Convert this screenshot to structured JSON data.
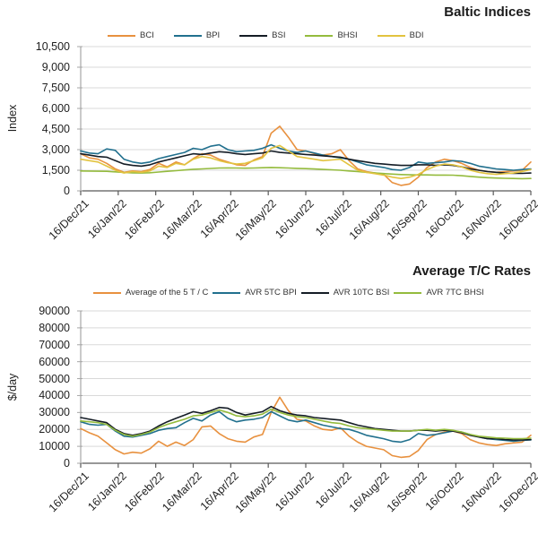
{
  "colors": {
    "grid": "#D9D9D9",
    "axis": "#A6A6A6",
    "x_axis": "#595959",
    "title_text": "#1A1A1A",
    "tick_text": "#1F1F1F",
    "background": "#FFFFFF",
    "orange": "#E8913F",
    "teal": "#21708E",
    "black": "#141C25",
    "green": "#94BB3D",
    "gold": "#E2C33F"
  },
  "chart_data": [
    {
      "type": "line",
      "title": "Baltic Indices",
      "ylabel": "Index",
      "ylim": [
        0,
        10500
      ],
      "ytick_step": 1500,
      "ytick_labels": [
        "0",
        "1,500",
        "3,000",
        "4,500",
        "6,000",
        "7,500",
        "9,000",
        "10,500"
      ],
      "x_tick_labels": [
        "16/Dec/21",
        "16/Jan/22",
        "16/Feb/22",
        "16/Mar/22",
        "16/Apr/22",
        "16/May/22",
        "16/Jun/22",
        "16/Jul/22",
        "16/Aug/22",
        "16/Sep/22",
        "16/Oct/22",
        "16/Nov/22",
        "16/Dec/22"
      ],
      "grid": true,
      "legend_position": "top",
      "x_unit": "weekly",
      "series": [
        {
          "name": "BCI",
          "color": "#E8913F",
          "values": [
            2700,
            2400,
            2300,
            2000,
            1600,
            1350,
            1450,
            1400,
            1550,
            2000,
            1750,
            2100,
            1900,
            2350,
            2700,
            2600,
            2300,
            2100,
            1900,
            1850,
            2250,
            2500,
            4200,
            4700,
            3900,
            3000,
            2900,
            2700,
            2600,
            2700,
            3000,
            2200,
            1600,
            1400,
            1300,
            1200,
            600,
            400,
            500,
            1000,
            1700,
            2100,
            2300,
            2200,
            2000,
            1700,
            1500,
            1400,
            1350,
            1400,
            1450,
            1500,
            2100
          ]
        },
        {
          "name": "BPI",
          "color": "#21708E",
          "values": [
            2900,
            2750,
            2700,
            3050,
            2950,
            2300,
            2100,
            2000,
            2100,
            2350,
            2500,
            2650,
            2800,
            3100,
            3000,
            3250,
            3350,
            3000,
            2850,
            2900,
            2950,
            3100,
            3350,
            3100,
            2900,
            2800,
            2900,
            2750,
            2600,
            2500,
            2400,
            2300,
            2100,
            1900,
            1800,
            1700,
            1550,
            1500,
            1700,
            2100,
            2000,
            2050,
            2100,
            2200,
            2150,
            2000,
            1800,
            1700,
            1600,
            1550,
            1500,
            1550,
            1600
          ]
        },
        {
          "name": "BSI",
          "color": "#141C25",
          "values": [
            2700,
            2600,
            2500,
            2450,
            2200,
            1950,
            1850,
            1800,
            1900,
            2100,
            2250,
            2400,
            2550,
            2700,
            2650,
            2750,
            2850,
            2800,
            2700,
            2650,
            2700,
            2750,
            2900,
            2800,
            2750,
            2700,
            2650,
            2600,
            2550,
            2500,
            2450,
            2300,
            2200,
            2100,
            2000,
            1950,
            1900,
            1850,
            1850,
            1900,
            1900,
            1850,
            1900,
            1850,
            1750,
            1600,
            1500,
            1400,
            1350,
            1300,
            1280,
            1270,
            1300
          ]
        },
        {
          "name": "BHSI",
          "color": "#94BB3D",
          "values": [
            1450,
            1440,
            1430,
            1420,
            1380,
            1340,
            1310,
            1300,
            1320,
            1370,
            1420,
            1470,
            1520,
            1570,
            1600,
            1630,
            1660,
            1670,
            1660,
            1650,
            1660,
            1680,
            1700,
            1680,
            1660,
            1640,
            1620,
            1590,
            1560,
            1530,
            1500,
            1450,
            1400,
            1350,
            1300,
            1260,
            1220,
            1190,
            1170,
            1160,
            1160,
            1150,
            1150,
            1140,
            1100,
            1050,
            1000,
            960,
            930,
            910,
            900,
            890,
            900
          ]
        },
        {
          "name": "BDI",
          "color": "#E2C33F",
          "values": [
            2300,
            2200,
            2100,
            1800,
            1500,
            1300,
            1400,
            1350,
            1450,
            1800,
            1700,
            2000,
            1900,
            2300,
            2500,
            2400,
            2200,
            2050,
            1950,
            2000,
            2200,
            2400,
            3100,
            3300,
            2900,
            2500,
            2400,
            2300,
            2200,
            2250,
            2300,
            1900,
            1500,
            1350,
            1250,
            1150,
            1000,
            900,
            1000,
            1200,
            1550,
            1800,
            1950,
            1900,
            1750,
            1500,
            1350,
            1250,
            1200,
            1250,
            1300,
            1400,
            1550
          ]
        }
      ]
    },
    {
      "type": "line",
      "title": "Average T/C Rates",
      "ylabel": "$/day",
      "ylim": [
        0,
        90000
      ],
      "ytick_step": 10000,
      "ytick_labels": [
        "0",
        "10000",
        "20000",
        "30000",
        "40000",
        "50000",
        "60000",
        "70000",
        "80000",
        "90000"
      ],
      "x_tick_labels": [
        "16/Dec/21",
        "16/Jan/22",
        "16/Feb/22",
        "16/Mar/22",
        "16/Apr/22",
        "16/May/22",
        "16/Jun/22",
        "16/Jul/22",
        "16/Aug/22",
        "16/Sep/22",
        "16/Oct/22",
        "16/Nov/22",
        "16/Dec/22"
      ],
      "grid": true,
      "legend_position": "top",
      "x_unit": "weekly",
      "series": [
        {
          "name": "Average of the 5 T / C",
          "color": "#E8913F",
          "values": [
            20500,
            18000,
            16000,
            12000,
            8000,
            5500,
            6500,
            6000,
            8500,
            13000,
            10000,
            12500,
            10500,
            14000,
            21500,
            22000,
            17500,
            14500,
            13000,
            12500,
            15500,
            17000,
            30000,
            39000,
            31000,
            26000,
            25000,
            22000,
            20000,
            19500,
            21000,
            16000,
            12500,
            10000,
            9000,
            8000,
            4500,
            3500,
            4000,
            7500,
            14000,
            17000,
            18500,
            19000,
            17500,
            14000,
            12000,
            11000,
            10500,
            11500,
            12000,
            12500,
            16500
          ]
        },
        {
          "name": "AVR 5TC BPI",
          "color": "#21708E",
          "values": [
            24500,
            23000,
            22500,
            23000,
            19000,
            16000,
            15500,
            16500,
            17500,
            19500,
            20500,
            21000,
            24000,
            26500,
            25000,
            28500,
            30500,
            26500,
            24500,
            25500,
            26000,
            27000,
            30500,
            28000,
            25500,
            24500,
            25500,
            24000,
            22500,
            21500,
            20500,
            20000,
            18500,
            16500,
            15500,
            14500,
            13000,
            12500,
            14000,
            17500,
            16500,
            17000,
            18000,
            19000,
            18500,
            17000,
            15500,
            14500,
            14000,
            13500,
            13000,
            13500,
            13800
          ]
        },
        {
          "name": "AVR 10TC BSI",
          "color": "#141C25",
          "values": [
            27000,
            26000,
            25000,
            24000,
            20000,
            17500,
            16500,
            17500,
            19000,
            22000,
            24500,
            26500,
            28500,
            30500,
            29500,
            31000,
            33000,
            32500,
            30000,
            28500,
            29500,
            30500,
            33500,
            31000,
            29500,
            28500,
            28000,
            27000,
            26500,
            26000,
            25500,
            24000,
            22500,
            21500,
            20500,
            20000,
            19500,
            19000,
            19000,
            19500,
            19500,
            19000,
            19500,
            19000,
            18000,
            16500,
            15500,
            14500,
            14500,
            14000,
            13800,
            13800,
            14000
          ]
        },
        {
          "name": "AVR 7TC BHSI",
          "color": "#94BB3D",
          "values": [
            25000,
            24500,
            24000,
            23000,
            19500,
            17000,
            16000,
            17000,
            18500,
            21000,
            23000,
            24500,
            26000,
            28000,
            28500,
            30000,
            31500,
            30000,
            28000,
            27500,
            28000,
            29000,
            32000,
            30000,
            28500,
            27500,
            27000,
            26000,
            25000,
            24000,
            23500,
            22000,
            21000,
            20500,
            20000,
            19500,
            19000,
            19000,
            19000,
            19500,
            20000,
            19500,
            20000,
            19500,
            18500,
            17000,
            16000,
            15500,
            15000,
            14800,
            14500,
            14500,
            14800
          ]
        }
      ]
    }
  ]
}
